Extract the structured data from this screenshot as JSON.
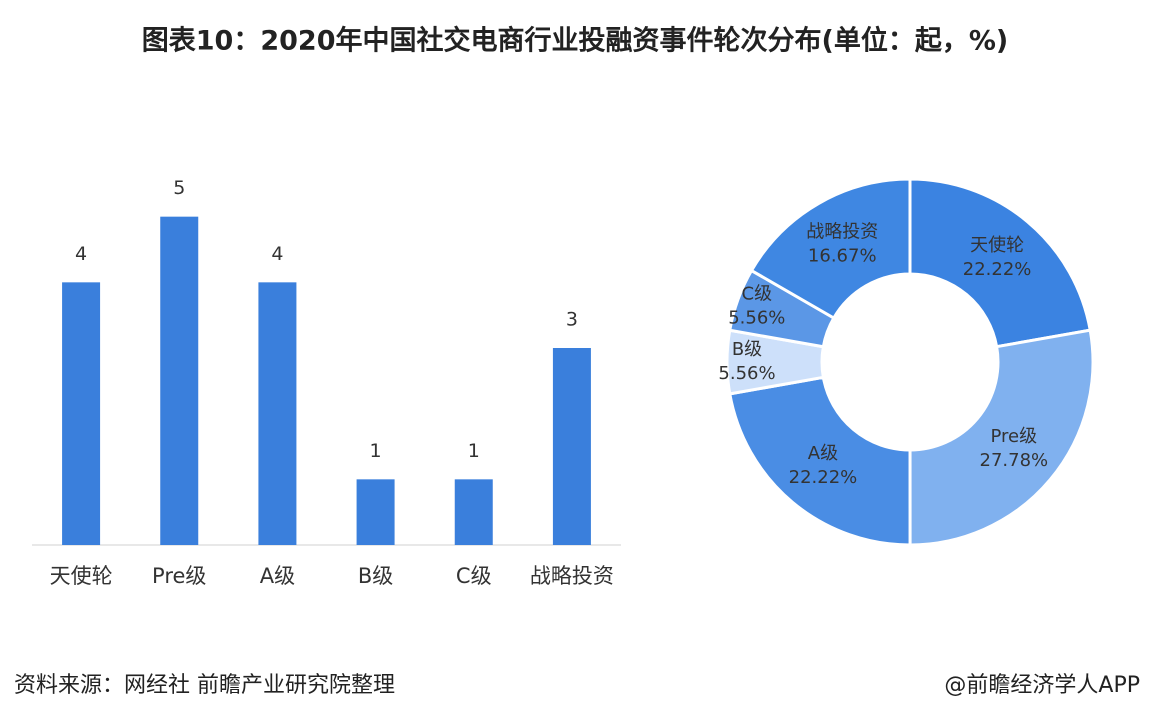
{
  "title": "图表10：2020年中国社交电商行业投融资事件轮次分布(单位：起，%)",
  "source": "资料来源：网经社 前瞻产业研究院整理",
  "credit": "@前瞻经济学人APP",
  "chart_data": [
    {
      "type": "bar",
      "categories": [
        "天使轮",
        "Pre级",
        "A级",
        "B级",
        "C级",
        "战略投资"
      ],
      "values": [
        4,
        5,
        4,
        1,
        1,
        3
      ],
      "color": "#3a7fdc",
      "ylim": [
        0,
        6
      ]
    },
    {
      "type": "donut",
      "categories": [
        "天使轮",
        "Pre级",
        "A级",
        "B级",
        "C级",
        "战略投资"
      ],
      "values": [
        22.22,
        27.78,
        22.22,
        5.56,
        5.56,
        16.67
      ],
      "value_labels": [
        "22.22%",
        "27.78%",
        "22.22%",
        "5.56%",
        "5.56%",
        "16.67%"
      ],
      "colors": [
        "#3b83e1",
        "#80b1ef",
        "#4a8de4",
        "#cde0fa",
        "#5b97e6",
        "#3f87e2"
      ]
    }
  ]
}
